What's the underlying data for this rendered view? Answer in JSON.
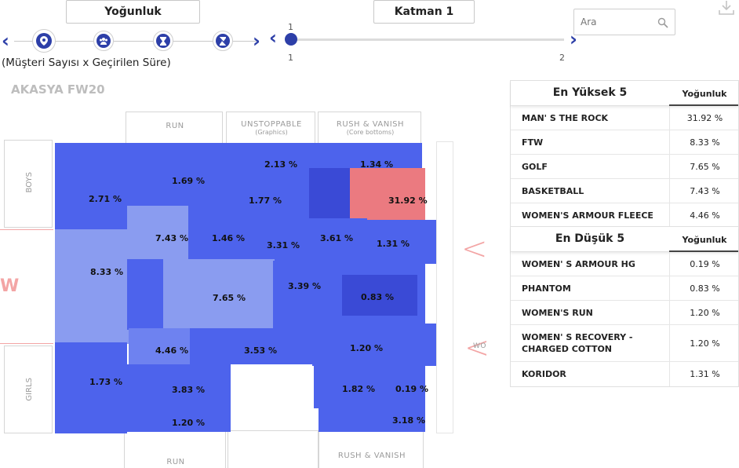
{
  "toolbar": {
    "mode_label": "Yoğunluk",
    "layer_label": "Katman 1",
    "metric_subtitle": "(Müşteri Sayısı x Geçirilen Süre)",
    "layer_slider": {
      "min_label": "1",
      "max_label": "2",
      "value_label": "1"
    },
    "search_placeholder": "Ara",
    "steps": [
      "location-pin-icon",
      "people-icon",
      "hourglass-icon",
      "hourglass-cross-icon"
    ]
  },
  "store": {
    "title": "AKASYA FW20",
    "sections": {
      "run_top": "RUN",
      "unstoppable": "UNSTOPPABLE",
      "unstoppable_sub": "(Graphics)",
      "rush_vanish_top": "RUSH & VANISH",
      "rush_vanish_sub": "(Core bottoms)",
      "boys": "BOYS",
      "girls": "GIRLS",
      "run_bottom": "RUN",
      "rush_vanish_bottom": "RUSH & VANISH",
      "red_w": "W",
      "red_wo": "WO"
    }
  },
  "zones": [
    {
      "id": "z1",
      "label": "2.71 %"
    },
    {
      "id": "z2",
      "label": "1.69 %"
    },
    {
      "id": "z3",
      "label": "2.13 %"
    },
    {
      "id": "z4",
      "label": "1.34 %"
    },
    {
      "id": "z5",
      "label": "1.77 %"
    },
    {
      "id": "z6",
      "label": "31.92 %"
    },
    {
      "id": "z7",
      "label": "7.43 %"
    },
    {
      "id": "z8",
      "label": "1.46 %"
    },
    {
      "id": "z9",
      "label": "3.31 %"
    },
    {
      "id": "z10",
      "label": "3.61 %"
    },
    {
      "id": "z11",
      "label": "1.31 %"
    },
    {
      "id": "z12",
      "label": "8.33 %"
    },
    {
      "id": "z13",
      "label": "7.65 %"
    },
    {
      "id": "z14",
      "label": "3.39 %"
    },
    {
      "id": "z15",
      "label": "0.83 %"
    },
    {
      "id": "z16",
      "label": "4.46 %"
    },
    {
      "id": "z17",
      "label": "3.53 %"
    },
    {
      "id": "z18",
      "label": "1.20 %"
    },
    {
      "id": "z19",
      "label": "1.73 %"
    },
    {
      "id": "z20",
      "label": "3.83 %"
    },
    {
      "id": "z21",
      "label": "1.82 %"
    },
    {
      "id": "z22",
      "label": "0.19 %"
    },
    {
      "id": "z23",
      "label": "1.20 %"
    },
    {
      "id": "z24",
      "label": "3.18 %"
    }
  ],
  "top5": {
    "title": "En Yüksek 5",
    "column": "Yoğunluk",
    "rows": [
      {
        "name": "MAN' S THE ROCK",
        "value": "31.92 %"
      },
      {
        "name": "FTW",
        "value": "8.33 %"
      },
      {
        "name": "GOLF",
        "value": "7.65 %"
      },
      {
        "name": "BASKETBALL",
        "value": "7.43 %"
      },
      {
        "name": "WOMEN'S ARMOUR FLEECE",
        "value": "4.46 %"
      }
    ]
  },
  "bottom5": {
    "title": "En Düşük 5",
    "column": "Yoğunluk",
    "rows": [
      {
        "name": "WOMEN' S ARMOUR HG",
        "value": "0.19 %"
      },
      {
        "name": "PHANTOM",
        "value": "0.83 %"
      },
      {
        "name": "WOMEN'S RUN",
        "value": "1.20 %"
      },
      {
        "name": "WOMEN' S RECOVERY - CHARGED COTTON",
        "value": "1.20 %"
      },
      {
        "name": "KORIDOR",
        "value": "1.31 %"
      }
    ]
  },
  "colors": {
    "accent": "#2d3fa8",
    "zone_blue": "#4d63ec",
    "zone_light": "#8a9cf0",
    "zone_hot": "#eb7a80"
  }
}
